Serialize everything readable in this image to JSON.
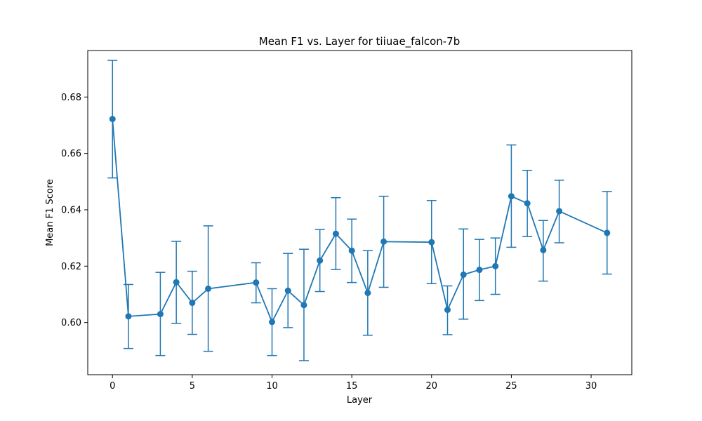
{
  "chart_data": {
    "type": "line",
    "title": "Mean F1 vs. Layer for tiiuae_falcon-7b",
    "xlabel": "Layer",
    "ylabel": "Mean F1 Score",
    "xlim": [
      -1.55,
      32.55
    ],
    "ylim": [
      0.5815,
      0.6965
    ],
    "xticks": [
      0,
      5,
      10,
      15,
      20,
      25,
      30
    ],
    "yticks": [
      0.6,
      0.62,
      0.64,
      0.66,
      0.68
    ],
    "grid": false,
    "color": "#1f77b4",
    "error_bars": true,
    "series": [
      {
        "points": [
          {
            "x": 0,
            "y": 0.6722,
            "lo": 0.6513,
            "hi": 0.693
          },
          {
            "x": 1,
            "y": 0.6022,
            "lo": 0.5908,
            "hi": 0.6135
          },
          {
            "x": 3,
            "y": 0.603,
            "lo": 0.5883,
            "hi": 0.6178
          },
          {
            "x": 4,
            "y": 0.6143,
            "lo": 0.5997,
            "hi": 0.6288
          },
          {
            "x": 5,
            "y": 0.607,
            "lo": 0.5958,
            "hi": 0.6182
          },
          {
            "x": 6,
            "y": 0.612,
            "lo": 0.5898,
            "hi": 0.6343
          },
          {
            "x": 9,
            "y": 0.6142,
            "lo": 0.607,
            "hi": 0.6212
          },
          {
            "x": 10,
            "y": 0.6002,
            "lo": 0.5883,
            "hi": 0.612
          },
          {
            "x": 11,
            "y": 0.6113,
            "lo": 0.5982,
            "hi": 0.6245
          },
          {
            "x": 12,
            "y": 0.6062,
            "lo": 0.5865,
            "hi": 0.626
          },
          {
            "x": 13,
            "y": 0.622,
            "lo": 0.611,
            "hi": 0.633
          },
          {
            "x": 14,
            "y": 0.6315,
            "lo": 0.6188,
            "hi": 0.6443
          },
          {
            "x": 15,
            "y": 0.6255,
            "lo": 0.6142,
            "hi": 0.6367
          },
          {
            "x": 16,
            "y": 0.6105,
            "lo": 0.5955,
            "hi": 0.6255
          },
          {
            "x": 17,
            "y": 0.6287,
            "lo": 0.6125,
            "hi": 0.6448
          },
          {
            "x": 20,
            "y": 0.6285,
            "lo": 0.6138,
            "hi": 0.6433
          },
          {
            "x": 21,
            "y": 0.6045,
            "lo": 0.5957,
            "hi": 0.613
          },
          {
            "x": 22,
            "y": 0.617,
            "lo": 0.6012,
            "hi": 0.6332
          },
          {
            "x": 23,
            "y": 0.6187,
            "lo": 0.6078,
            "hi": 0.6295
          },
          {
            "x": 24,
            "y": 0.62,
            "lo": 0.61,
            "hi": 0.63
          },
          {
            "x": 25,
            "y": 0.6448,
            "lo": 0.6267,
            "hi": 0.663
          },
          {
            "x": 26,
            "y": 0.6423,
            "lo": 0.6305,
            "hi": 0.654
          },
          {
            "x": 27,
            "y": 0.6257,
            "lo": 0.6147,
            "hi": 0.6362
          },
          {
            "x": 28,
            "y": 0.6395,
            "lo": 0.6283,
            "hi": 0.6505
          },
          {
            "x": 31,
            "y": 0.6318,
            "lo": 0.6172,
            "hi": 0.6465
          }
        ]
      }
    ]
  }
}
